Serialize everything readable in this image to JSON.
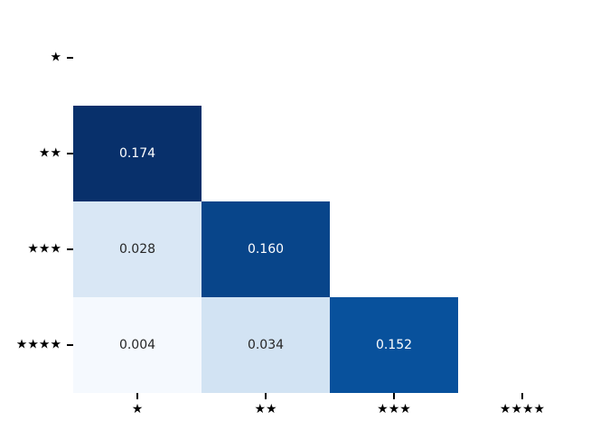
{
  "chart_data": {
    "type": "heatmap",
    "title": "",
    "xlabel": "",
    "ylabel": "",
    "x_tick_labels": [
      "★",
      "★★",
      "★★★",
      "★★★★"
    ],
    "y_tick_labels": [
      "★",
      "★★",
      "★★★",
      "★★★★"
    ],
    "colormap": "Blues",
    "mask": "upper triangle including diagonal; only cells with row > col are drawn",
    "grid": false,
    "legend": "none",
    "background": "#ffffff",
    "tick_color": "#000000",
    "value_range": [
      0.004,
      0.174
    ],
    "cells": [
      {
        "row": 1,
        "col": 0,
        "value": 0.174,
        "label": "0.174",
        "color": "#08306b",
        "text_color": "#ffffff"
      },
      {
        "row": 2,
        "col": 0,
        "value": 0.028,
        "label": "0.028",
        "color": "#d9e7f5",
        "text_color": "#262626"
      },
      {
        "row": 2,
        "col": 1,
        "value": 0.16,
        "label": "0.160",
        "color": "#08458a",
        "text_color": "#ffffff"
      },
      {
        "row": 3,
        "col": 0,
        "value": 0.004,
        "label": "0.004",
        "color": "#f5f9fe",
        "text_color": "#262626"
      },
      {
        "row": 3,
        "col": 1,
        "value": 0.034,
        "label": "0.034",
        "color": "#d2e3f3",
        "text_color": "#262626"
      },
      {
        "row": 3,
        "col": 2,
        "value": 0.152,
        "label": "0.152",
        "color": "#08519c",
        "text_color": "#ffffff"
      }
    ]
  }
}
